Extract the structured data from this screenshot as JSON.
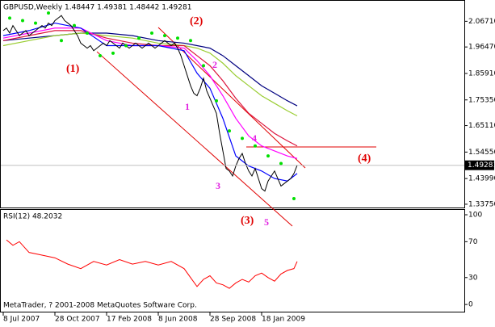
{
  "chart_data": {
    "type": "line",
    "title": "GBPUSD,Weekly  1.48447 1.49381 1.48442 1.49281",
    "color": "#000000",
    "values": [
      2.03,
      2.04,
      2.02,
      2.05,
      2.03,
      2.01,
      2.02,
      2.03,
      2.01,
      2.02,
      2.03,
      2.04,
      2.05,
      2.04,
      2.06,
      2.05,
      2.07,
      2.08,
      2.09,
      2.07,
      2.06,
      2.05,
      2.03,
      2.01,
      1.98,
      1.97,
      1.96,
      1.97,
      1.95,
      1.96,
      1.97,
      1.98,
      1.97,
      1.99,
      1.98,
      1.97,
      1.96,
      1.98,
      1.97,
      1.96,
      1.97,
      1.98,
      1.97,
      1.96,
      1.97,
      1.98,
      1.97,
      1.96,
      1.97,
      1.98,
      1.99,
      1.98,
      1.97,
      1.98,
      1.96,
      1.93,
      1.89,
      1.85,
      1.81,
      1.78,
      1.77,
      1.8,
      1.84,
      1.79,
      1.76,
      1.73,
      1.7,
      1.62,
      1.55,
      1.48,
      1.47,
      1.45,
      1.49,
      1.52,
      1.54,
      1.5,
      1.47,
      1.45,
      1.48,
      1.44,
      1.4,
      1.39,
      1.43,
      1.45,
      1.47,
      1.44,
      1.41,
      1.42,
      1.43,
      1.44,
      1.46,
      1.4928
    ],
    "series": [
      {
        "color": "#000080",
        "x": [
          0,
          8,
          16,
          24,
          32,
          40,
          48,
          56,
          60,
          64,
          68,
          72,
          76,
          80,
          84,
          88,
          91
        ],
        "values": [
          1.99,
          2.0,
          2.01,
          2.02,
          2.02,
          2.01,
          1.99,
          1.98,
          1.97,
          1.96,
          1.93,
          1.89,
          1.85,
          1.81,
          1.78,
          1.75,
          1.73
        ]
      },
      {
        "color": "#9acd32",
        "x": [
          0,
          8,
          16,
          24,
          32,
          40,
          48,
          56,
          60,
          64,
          68,
          72,
          76,
          80,
          84,
          88,
          91
        ],
        "values": [
          1.97,
          1.99,
          2.01,
          2.02,
          2.01,
          2.0,
          1.98,
          1.97,
          1.96,
          1.94,
          1.9,
          1.85,
          1.81,
          1.77,
          1.74,
          1.71,
          1.69
        ]
      },
      {
        "color": "#dc143c",
        "x": [
          0,
          8,
          16,
          24,
          32,
          40,
          48,
          56,
          60,
          64,
          68,
          72,
          76,
          80,
          84,
          88,
          91
        ],
        "values": [
          1.99,
          2.01,
          2.03,
          2.03,
          2.0,
          1.98,
          1.97,
          1.97,
          1.93,
          1.89,
          1.83,
          1.76,
          1.7,
          1.66,
          1.62,
          1.59,
          1.57
        ]
      },
      {
        "color": "#ff00ff",
        "x": [
          0,
          8,
          16,
          24,
          32,
          40,
          48,
          56,
          60,
          64,
          68,
          72,
          76,
          80,
          84,
          88,
          91
        ],
        "values": [
          2.0,
          2.02,
          2.04,
          2.04,
          1.99,
          1.97,
          1.97,
          1.96,
          1.91,
          1.85,
          1.77,
          1.68,
          1.61,
          1.57,
          1.55,
          1.53,
          1.52
        ]
      },
      {
        "color": "#0000ff",
        "x": [
          0,
          8,
          16,
          24,
          32,
          40,
          48,
          56,
          60,
          64,
          68,
          72,
          76,
          80,
          84,
          88,
          91
        ],
        "values": [
          2.01,
          2.03,
          2.06,
          2.04,
          1.97,
          1.97,
          1.97,
          1.95,
          1.86,
          1.8,
          1.68,
          1.53,
          1.49,
          1.47,
          1.44,
          1.43,
          1.46
        ]
      }
    ],
    "sar": {
      "color": "#00e000",
      "x": [
        2,
        6,
        10,
        14,
        18,
        22,
        26,
        30,
        34,
        38,
        42,
        46,
        50,
        54,
        58,
        62,
        66,
        70,
        74,
        78,
        82,
        86,
        90
      ],
      "values": [
        2.08,
        2.07,
        2.06,
        2.1,
        1.99,
        2.05,
        2.02,
        1.93,
        1.94,
        1.97,
        2.0,
        2.02,
        2.01,
        2.0,
        1.99,
        1.89,
        1.75,
        1.63,
        1.6,
        1.57,
        1.53,
        1.5,
        1.36
      ]
    },
    "price_label": {
      "value": 1.49281,
      "label": "1.49281"
    },
    "ylim": [
      1.3244,
      2.1488
    ],
    "yticks": [
      {
        "value": 2.0671,
        "label": "2.06710"
      },
      {
        "value": 1.9647,
        "label": "1.96470"
      },
      {
        "value": 1.8591,
        "label": "1.85910"
      },
      {
        "value": 1.7535,
        "label": "1.75350"
      },
      {
        "value": 1.6511,
        "label": "1.65110"
      },
      {
        "value": 1.5455,
        "label": "1.54550"
      },
      {
        "value": 1.4399,
        "label": "1.43990"
      },
      {
        "value": 1.3375,
        "label": "1.33750"
      }
    ],
    "xlim": [
      0,
      91
    ],
    "xticks": [
      {
        "value": 0,
        "label": "8 Jul 2007"
      },
      {
        "value": 16,
        "label": "28 Oct 2007"
      },
      {
        "value": 32,
        "label": "17 Feb 2008"
      },
      {
        "value": 48,
        "label": "8 Jun 2008"
      },
      {
        "value": 64,
        "label": "28 Sep 2008"
      },
      {
        "value": 80,
        "label": "18 Jan 2009"
      }
    ],
    "annotations": [
      "(1)",
      "(2)",
      "(3)",
      "(4)",
      "1",
      "2",
      "3",
      "4",
      "5"
    ],
    "rsi": {
      "title": "RSI(12) 48.2032",
      "color": "#ff0000",
      "x": [
        1,
        3,
        5,
        8,
        12,
        16,
        20,
        24,
        28,
        32,
        36,
        40,
        44,
        48,
        52,
        56,
        58,
        60,
        62,
        64,
        66,
        68,
        70,
        72,
        74,
        76,
        78,
        80,
        82,
        84,
        86,
        88,
        90,
        91
      ],
      "values": [
        72,
        66,
        70,
        58,
        55,
        52,
        45,
        40,
        48,
        44,
        50,
        45,
        48,
        44,
        48,
        40,
        30,
        20,
        28,
        32,
        24,
        22,
        18,
        24,
        28,
        25,
        32,
        35,
        30,
        26,
        34,
        38,
        40,
        48
      ],
      "ylim": [
        -8.9,
        105.4
      ],
      "yticks": [
        100,
        70,
        30,
        0
      ]
    },
    "footer": "MetaTrader, ? 2001-2008 MetaQuotes Software Corp."
  }
}
